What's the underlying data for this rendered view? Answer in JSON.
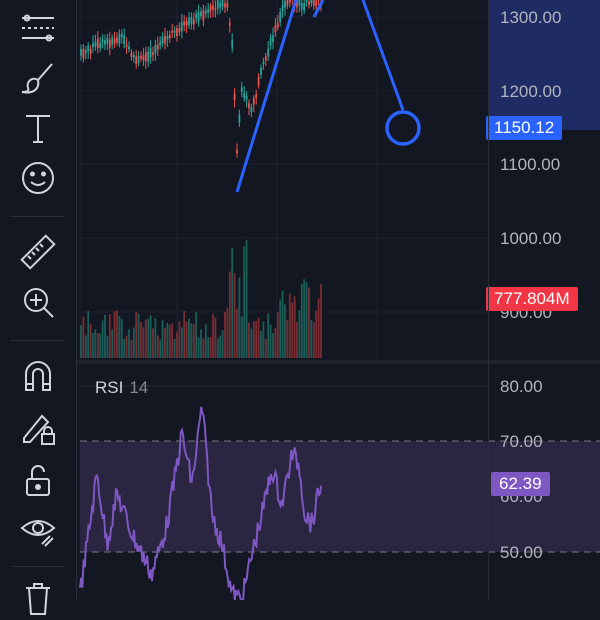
{
  "toolbar": {
    "items": [
      {
        "name": "fib-retracement-tool",
        "icon": "fib-lines-icon"
      },
      {
        "name": "brush-tool",
        "icon": "brush-icon"
      },
      {
        "name": "text-tool",
        "icon": "text-icon"
      },
      {
        "name": "emoji-tool",
        "icon": "smiley-icon"
      },
      {
        "name": "measure-tool",
        "icon": "ruler-icon"
      },
      {
        "name": "zoom-in-tool",
        "icon": "zoom-in-icon"
      },
      {
        "name": "magnet-tool",
        "icon": "magnet-icon"
      },
      {
        "name": "lock-drawings-tool",
        "icon": "pencil-lock-icon"
      },
      {
        "name": "unlock-tool",
        "icon": "unlock-icon"
      },
      {
        "name": "hide-drawings-tool",
        "icon": "eye-icon"
      },
      {
        "name": "trash-tool",
        "icon": "trash-icon"
      }
    ]
  },
  "price_scale": {
    "ticks": [
      "1300.00",
      "1200.00",
      "1100.00",
      "1000.00",
      "900.00"
    ],
    "current_price": "1150.12",
    "volume_label": "777.804M"
  },
  "rsi": {
    "title": "RSI",
    "length": "14",
    "ticks": [
      "80.00",
      "70.00",
      "60.00",
      "50.00"
    ],
    "current_value": "62.39"
  },
  "colors": {
    "background": "#131722",
    "up": "#26a69a",
    "down": "#ef5350",
    "price_badge": "#2962ff",
    "volume_badge": "#f23645",
    "rsi_line": "#7e57c2",
    "rsi_badge": "#7e57c2",
    "drawing_line": "#2962ff"
  }
}
